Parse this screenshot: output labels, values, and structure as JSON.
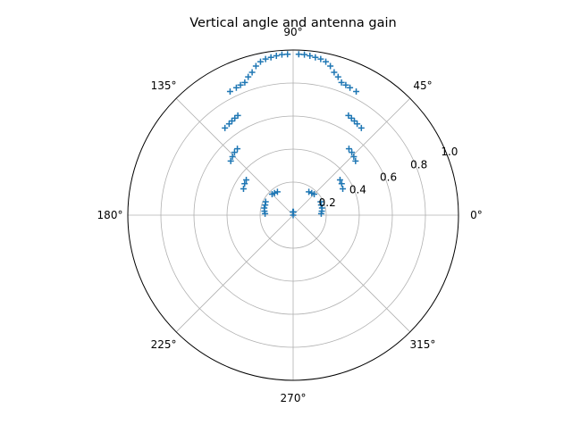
{
  "chart_data": {
    "type": "scatter",
    "projection": "polar",
    "title": "Vertical angle and antenna gain",
    "theta_ticks": [
      "0°",
      "45°",
      "90°",
      "135°",
      "180°",
      "225°",
      "270°",
      "315°"
    ],
    "r_ticks": [
      "0.2",
      "0.4",
      "0.6",
      "0.8",
      "1.0"
    ],
    "rlim": [
      0,
      1.0
    ],
    "grid": true,
    "marker": "plus",
    "color": "#1f77b4",
    "series": [
      {
        "points_deg_r": [
          [
            3,
            0.17
          ],
          [
            8,
            0.175
          ],
          [
            14,
            0.18
          ],
          [
            20,
            0.18
          ],
          [
            26,
            0.185
          ],
          [
            28,
            0.34
          ],
          [
            33,
            0.35
          ],
          [
            37,
            0.355
          ],
          [
            41,
            0.5
          ],
          [
            44,
            0.51
          ],
          [
            47,
            0.52
          ],
          [
            50,
            0.525
          ],
          [
            52,
            0.67
          ],
          [
            55,
            0.675
          ],
          [
            57,
            0.68
          ],
          [
            59,
            0.685
          ],
          [
            61,
            0.69
          ],
          [
            63,
            0.84
          ],
          [
            66,
            0.845
          ],
          [
            68,
            0.85
          ],
          [
            70,
            0.855
          ],
          [
            72,
            0.88
          ],
          [
            74,
            0.9
          ],
          [
            76,
            0.93
          ],
          [
            78,
            0.95
          ],
          [
            80,
            0.96
          ],
          [
            82,
            0.965
          ],
          [
            84,
            0.97
          ],
          [
            86,
            0.975
          ],
          [
            88,
            0.975
          ],
          [
            92,
            0.975
          ],
          [
            94,
            0.975
          ],
          [
            96,
            0.97
          ],
          [
            98,
            0.965
          ],
          [
            100,
            0.96
          ],
          [
            102,
            0.95
          ],
          [
            104,
            0.93
          ],
          [
            106,
            0.9
          ],
          [
            108,
            0.88
          ],
          [
            110,
            0.855
          ],
          [
            112,
            0.85
          ],
          [
            114,
            0.845
          ],
          [
            117,
            0.84
          ],
          [
            119,
            0.69
          ],
          [
            121,
            0.685
          ],
          [
            123,
            0.68
          ],
          [
            125,
            0.675
          ],
          [
            128,
            0.67
          ],
          [
            130,
            0.525
          ],
          [
            133,
            0.52
          ],
          [
            136,
            0.51
          ],
          [
            139,
            0.5
          ],
          [
            143,
            0.355
          ],
          [
            147,
            0.35
          ],
          [
            152,
            0.34
          ],
          [
            154,
            0.185
          ],
          [
            160,
            0.18
          ],
          [
            166,
            0.18
          ],
          [
            172,
            0.175
          ],
          [
            177,
            0.17
          ],
          [
            45,
            0.18
          ],
          [
            50,
            0.175
          ],
          [
            56,
            0.17
          ],
          [
            124,
            0.17
          ],
          [
            130,
            0.175
          ],
          [
            135,
            0.18
          ],
          [
            90,
            0.02
          ],
          [
            85,
            0.02
          ],
          [
            95,
            0.02
          ],
          [
            180,
            0.0
          ]
        ]
      }
    ]
  }
}
